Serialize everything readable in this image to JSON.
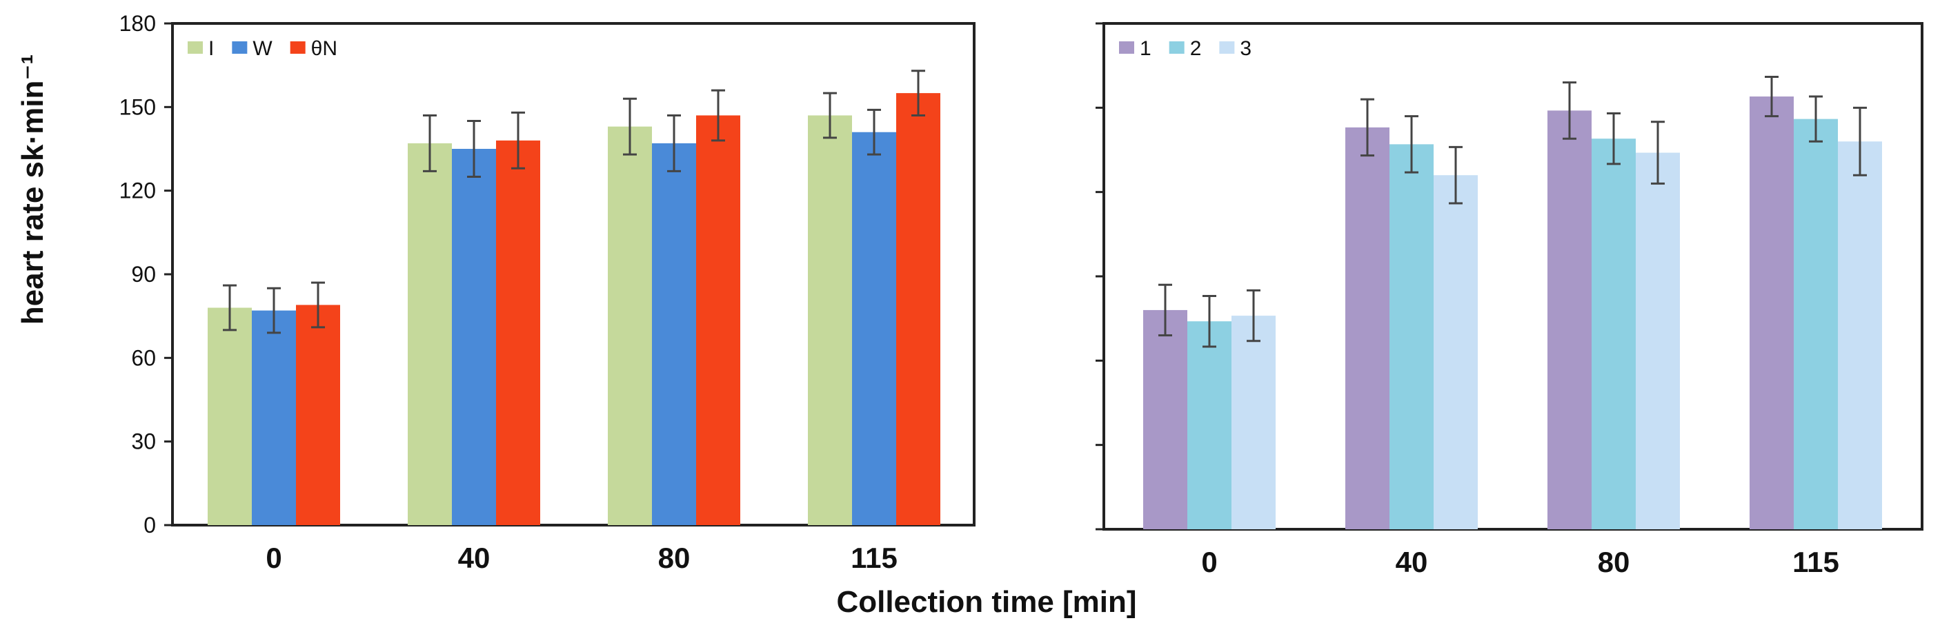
{
  "figure": {
    "xlabel": "Collection time [min]",
    "ylabel": "heart rate sk·min⁻¹"
  },
  "chart_data": [
    {
      "type": "bar",
      "title": "",
      "xlabel": "Collection time [min]",
      "ylabel": "heart rate sk·min⁻¹",
      "categories": [
        "0",
        "40",
        "80",
        "115"
      ],
      "ylim": [
        0,
        180
      ],
      "yticks": [
        0,
        30,
        60,
        90,
        120,
        150,
        180
      ],
      "show_ytick_labels": true,
      "grid": false,
      "legend_position": "top-left",
      "series": [
        {
          "name": "I",
          "color": "#c5d99b",
          "values": [
            78,
            137,
            143,
            147
          ],
          "errors": [
            8,
            10,
            10,
            8
          ]
        },
        {
          "name": "W",
          "color": "#4a8ad8",
          "values": [
            77,
            135,
            137,
            141
          ],
          "errors": [
            8,
            10,
            10,
            8
          ]
        },
        {
          "name": "θN",
          "color": "#f4431a",
          "values": [
            79,
            138,
            147,
            155
          ],
          "errors": [
            8,
            10,
            9,
            8
          ]
        }
      ]
    },
    {
      "type": "bar",
      "title": "",
      "xlabel": "Collection time [min]",
      "ylabel": "",
      "categories": [
        "0",
        "40",
        "80",
        "115"
      ],
      "ylim": [
        0,
        180
      ],
      "yticks": [
        0,
        30,
        60,
        90,
        120,
        150,
        180
      ],
      "show_ytick_labels": false,
      "grid": false,
      "legend_position": "top-left",
      "series": [
        {
          "name": "1",
          "color": "#a898c7",
          "values": [
            78,
            143,
            149,
            154
          ],
          "errors": [
            9,
            10,
            10,
            7
          ]
        },
        {
          "name": "2",
          "color": "#8dd0e2",
          "values": [
            74,
            137,
            139,
            146
          ],
          "errors": [
            9,
            10,
            9,
            8
          ]
        },
        {
          "name": "3",
          "color": "#c7dff5",
          "values": [
            76,
            126,
            134,
            138
          ],
          "errors": [
            9,
            10,
            11,
            12
          ]
        }
      ]
    }
  ]
}
